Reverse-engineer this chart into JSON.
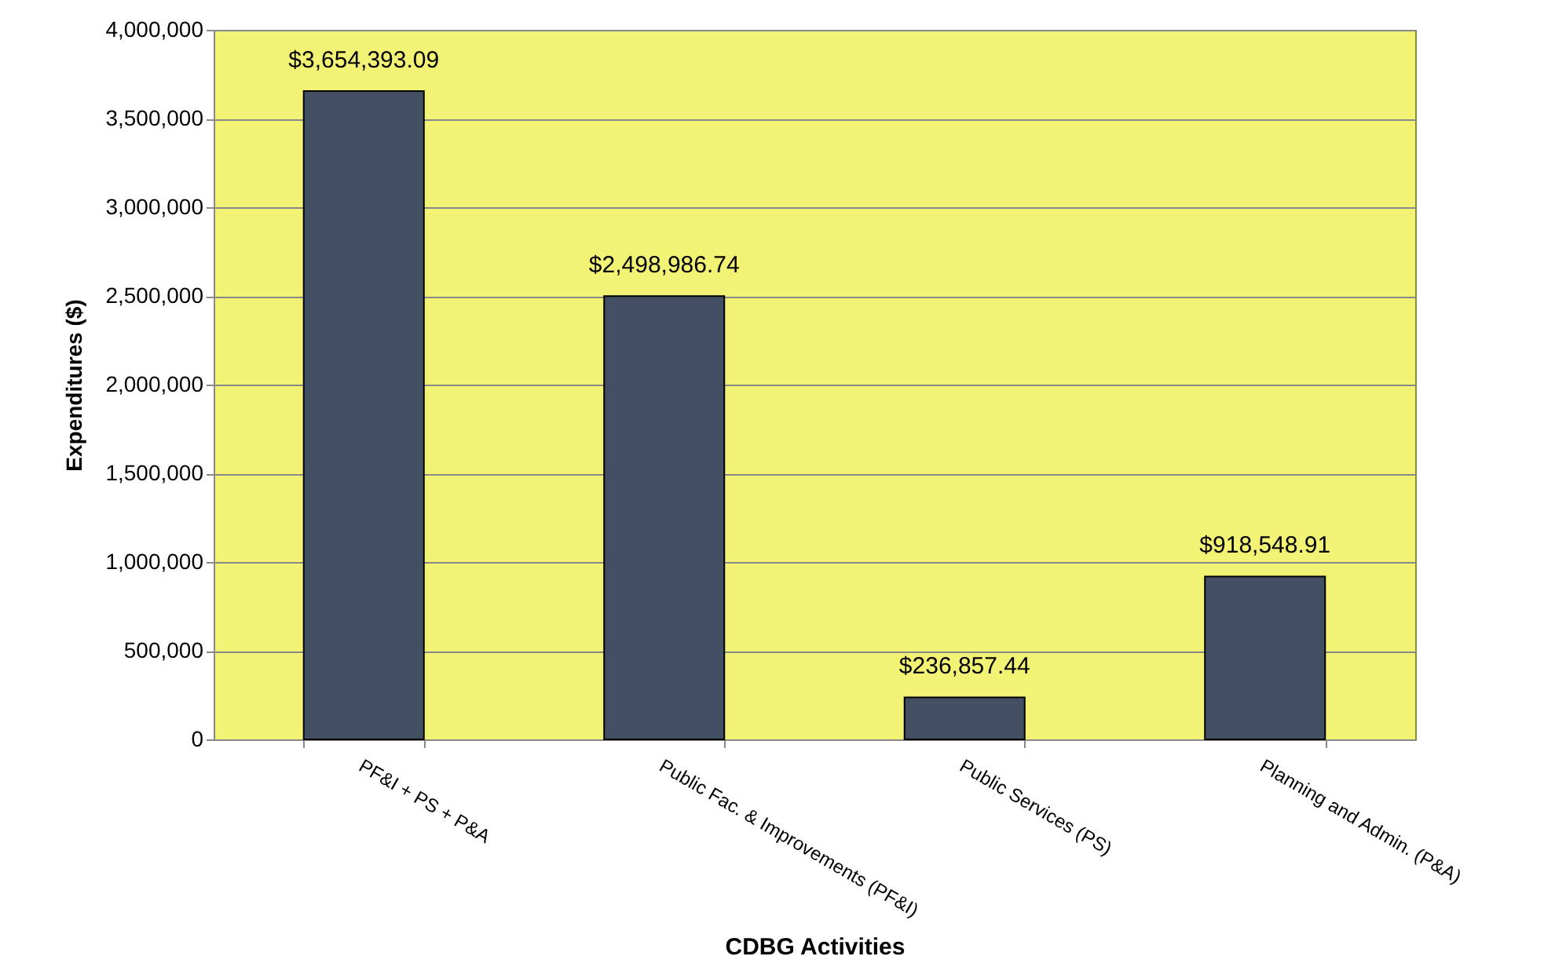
{
  "chart_data": {
    "type": "bar",
    "xlabel": "CDBG Activities",
    "ylabel": "Expenditures ($)",
    "categories": [
      "PF&I + PS + P&A",
      "Public Fac. & Improvements (PF&I)",
      "Public Services (PS)",
      "Planning and Admin. (P&A)"
    ],
    "values": [
      3654393.09,
      2498986.74,
      236857.44,
      918548.91
    ],
    "value_labels": [
      "$3,654,393.09",
      "$2,498,986.74",
      "$236,857.44",
      "$918,548.91"
    ],
    "color": "#434f63",
    "ylim": [
      0,
      4000000
    ],
    "yticks": [
      0,
      {
        "value": 500000,
        "label": "500,000"
      },
      {
        "value": 1000000,
        "label": "1,000,000"
      },
      {
        "value": 1500000,
        "label": "1,500,000"
      },
      {
        "value": 2000000,
        "label": "2,000,000"
      },
      {
        "value": 2500000,
        "label": "2,500,000"
      },
      {
        "value": 3000000,
        "label": "3,000,000"
      },
      {
        "value": 3500000,
        "label": "3,500,000"
      },
      {
        "value": 4000000,
        "label": "4,000,000"
      }
    ],
    "grid": "y"
  }
}
